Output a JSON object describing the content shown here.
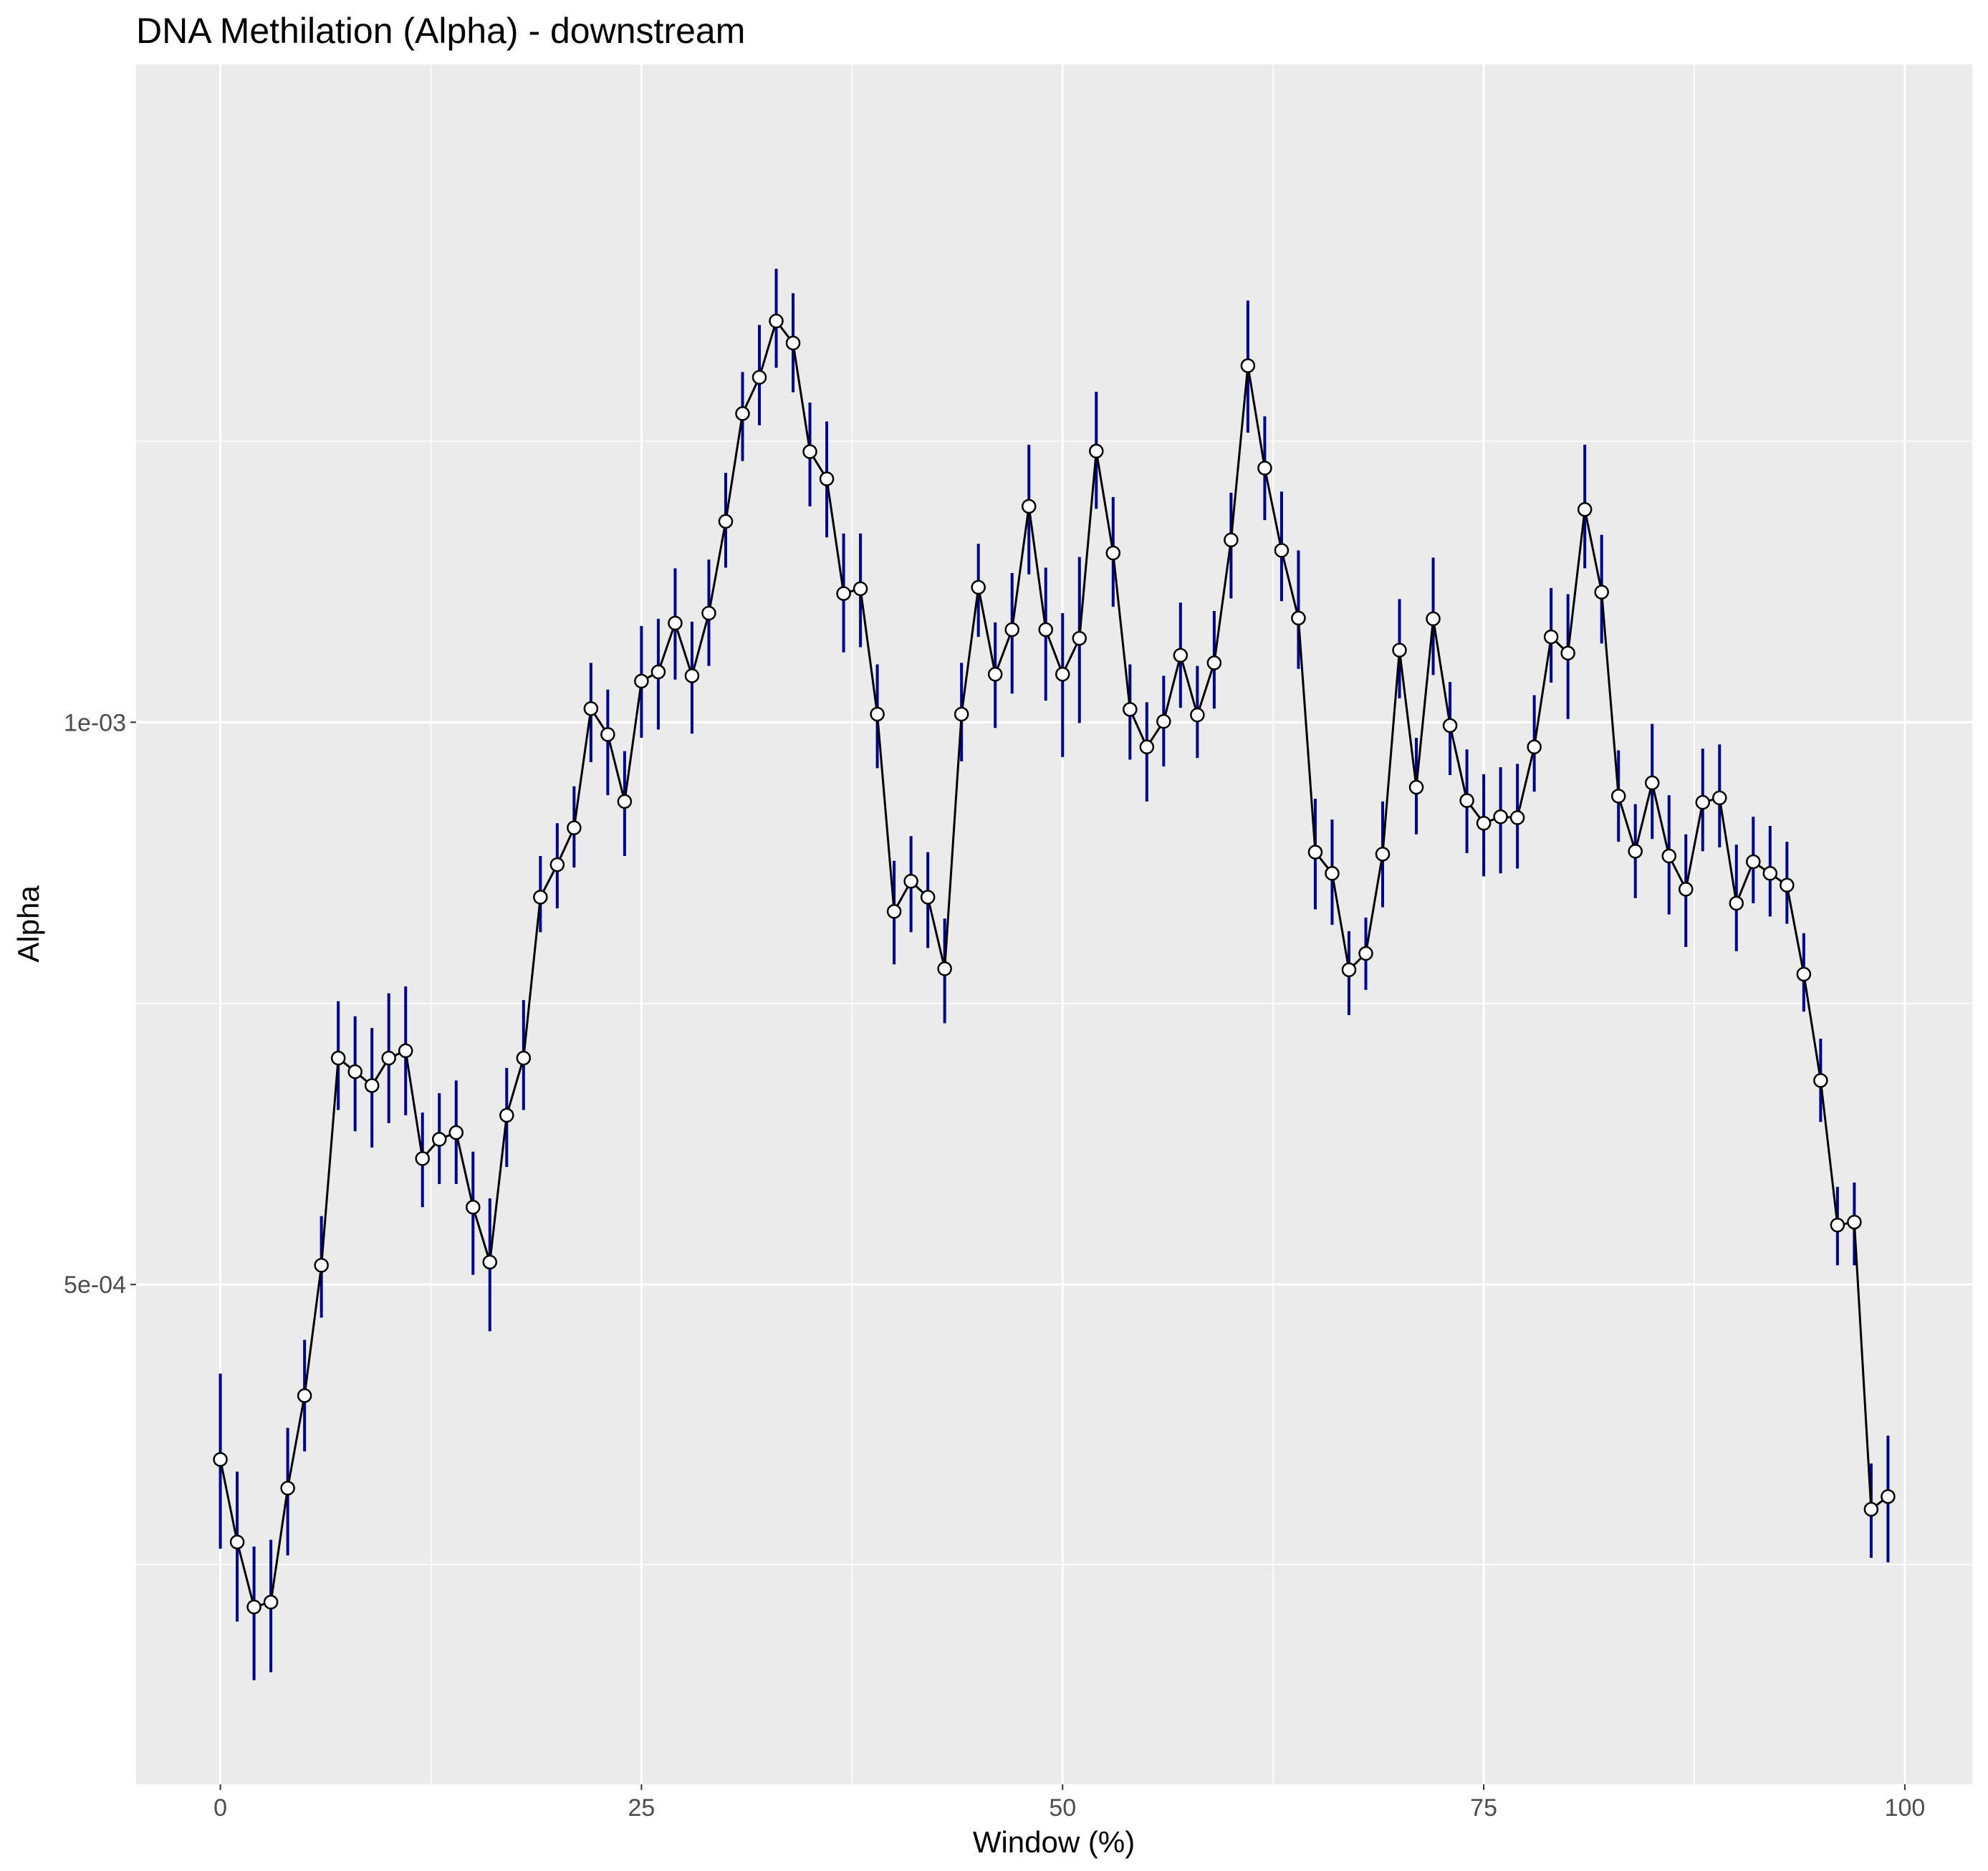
{
  "chart_data": {
    "type": "line",
    "title": "DNA Methilation (Alpha) - downstream",
    "xlabel": "Window (%)",
    "ylabel": "Alpha",
    "xlim": [
      -5,
      104
    ],
    "ylim": [
      0.00027,
      0.00225
    ],
    "y_scale": "log",
    "grid": true,
    "x_ticks": [
      0,
      25,
      50,
      75,
      100
    ],
    "x_tick_labels": [
      "0",
      "25",
      "50",
      "75",
      "100"
    ],
    "y_ticks": [
      0.0005,
      0.001
    ],
    "y_tick_labels": [
      "5e-04",
      "1e-03"
    ],
    "y_minor_ticks": [
      0.000354,
      0.000707,
      0.001414
    ],
    "colors": {
      "panel": "#ebebeb",
      "grid": "#ffffff",
      "line": "#000000",
      "error_bar": "#00008b",
      "point_fill": "#ffffff"
    },
    "series": [
      {
        "x": [
          0,
          1,
          2,
          3,
          4,
          5,
          6,
          7,
          8,
          9,
          10,
          11,
          12,
          13,
          14,
          15,
          16,
          17,
          18,
          19,
          20,
          21,
          22,
          23,
          24,
          25,
          26,
          27,
          28,
          29,
          30,
          31,
          32,
          33,
          34,
          35,
          36,
          37,
          38,
          39,
          40,
          41,
          42,
          43,
          44,
          45,
          46,
          47,
          48,
          49,
          50,
          51,
          52,
          53,
          54,
          55,
          56,
          57,
          58,
          59,
          60,
          61,
          62,
          63,
          64,
          65,
          66,
          67,
          68,
          69,
          70,
          71,
          72,
          73,
          74,
          75,
          76,
          77,
          78,
          79,
          80,
          81,
          82,
          83,
          84,
          85,
          86,
          87,
          88,
          89,
          90,
          91,
          92,
          93,
          94,
          95,
          96,
          97,
          98,
          99
        ],
        "values": [
          0.000403,
          0.000364,
          0.000336,
          0.000338,
          0.000389,
          0.000436,
          0.000512,
          0.000661,
          0.00065,
          0.000639,
          0.000661,
          0.000667,
          0.000584,
          0.000598,
          0.000603,
          0.00055,
          0.000514,
          0.000616,
          0.000661,
          0.000806,
          0.000839,
          0.000878,
          0.001017,
          0.000985,
          0.000907,
          0.001052,
          0.001064,
          0.00113,
          0.001059,
          0.001144,
          0.001281,
          0.001463,
          0.00153,
          0.00164,
          0.001596,
          0.001396,
          0.00135,
          0.001172,
          0.001179,
          0.00101,
          0.000792,
          0.000822,
          0.000806,
          0.000738,
          0.00101,
          0.001181,
          0.001061,
          0.001121,
          0.001305,
          0.001121,
          0.001061,
          0.001109,
          0.001397,
          0.001232,
          0.001016,
          0.00097,
          0.001001,
          0.001086,
          0.001009,
          0.001076,
          0.001252,
          0.001552,
          0.001368,
          0.001236,
          0.001137,
          0.000852,
          0.00083,
          0.000737,
          0.000752,
          0.00085,
          0.001093,
          0.000923,
          0.001136,
          0.000996,
          0.000908,
          0.000883,
          0.00089,
          0.000889,
          0.00097,
          0.001111,
          0.001089,
          0.0013,
          0.001174,
          0.000913,
          0.000853,
          0.000928,
          0.000848,
          0.000814,
          0.000906,
          0.000911,
          0.0008,
          0.000842,
          0.00083,
          0.000818,
          0.000733,
          0.000643,
          0.000538,
          0.00054,
          0.000379,
          0.000385
        ],
        "lower": [
          0.000361,
          0.00033,
          0.000307,
          0.00031,
          0.000358,
          0.000407,
          0.00048,
          0.00062,
          0.000604,
          0.000592,
          0.00061,
          0.000616,
          0.00055,
          0.000566,
          0.000566,
          0.000506,
          0.000472,
          0.000578,
          0.00062,
          0.000772,
          0.000795,
          0.000836,
          0.000952,
          0.000914,
          0.000848,
          0.000981,
          0.000991,
          0.001054,
          0.000986,
          0.001072,
          0.00121,
          0.00138,
          0.001442,
          0.001548,
          0.001502,
          0.001305,
          0.001256,
          0.00109,
          0.001097,
          0.000945,
          0.000742,
          0.000772,
          0.000757,
          0.00069,
          0.000953,
          0.001111,
          0.000993,
          0.001036,
          0.0012,
          0.001027,
          0.000958,
          0.000999,
          0.001301,
          0.001153,
          0.000955,
          0.000907,
          0.000947,
          0.001018,
          0.000957,
          0.001017,
          0.001165,
          0.001429,
          0.001283,
          0.001161,
          0.001068,
          0.000794,
          0.000779,
          0.000697,
          0.000719,
          0.000796,
          0.00103,
          0.000871,
          0.00106,
          0.000937,
          0.000851,
          0.000827,
          0.00083,
          0.000835,
          0.000918,
          0.00105,
          0.001004,
          0.001209,
          0.001102,
          0.000863,
          0.000805,
          0.000866,
          0.000789,
          0.000758,
          0.000853,
          0.000857,
          0.000754,
          0.0008,
          0.000787,
          0.00078,
          0.0007,
          0.000611,
          0.000512,
          0.000512,
          0.000357,
          0.000355
        ],
        "upper": [
          0.000448,
          0.000397,
          0.000362,
          0.000365,
          0.000419,
          0.000467,
          0.000544,
          0.000709,
          0.000696,
          0.000686,
          0.000716,
          0.000722,
          0.000618,
          0.000633,
          0.000643,
          0.000589,
          0.000556,
          0.000653,
          0.00071,
          0.000848,
          0.000883,
          0.000924,
          0.001076,
          0.001041,
          0.000965,
          0.001126,
          0.001136,
          0.001209,
          0.001132,
          0.001222,
          0.00136,
          0.00154,
          0.001632,
          0.001749,
          0.001697,
          0.001483,
          0.001449,
          0.001262,
          0.001262,
          0.001074,
          0.000843,
          0.000869,
          0.000852,
          0.000785,
          0.001076,
          0.001246,
          0.001131,
          0.001202,
          0.001408,
          0.00121,
          0.001144,
          0.001226,
          0.001503,
          0.00132,
          0.001074,
          0.001025,
          0.001059,
          0.001159,
          0.001072,
          0.001147,
          0.001327,
          0.001682,
          0.001458,
          0.001329,
          0.001236,
          0.00091,
          0.000887,
          0.000773,
          0.000786,
          0.000907,
          0.001164,
          0.000981,
          0.001225,
          0.001051,
          0.000967,
          0.000938,
          0.000946,
          0.00095,
          0.001034,
          0.00118,
          0.001171,
          0.001408,
          0.00126,
          0.000966,
          0.000904,
          0.000998,
          0.000914,
          0.000871,
          0.000968,
          0.000973,
          0.00086,
          0.00089,
          0.00088,
          0.000863,
          0.000771,
          0.000677,
          0.000564,
          0.000567,
          0.000401,
          0.000415
        ]
      }
    ]
  }
}
